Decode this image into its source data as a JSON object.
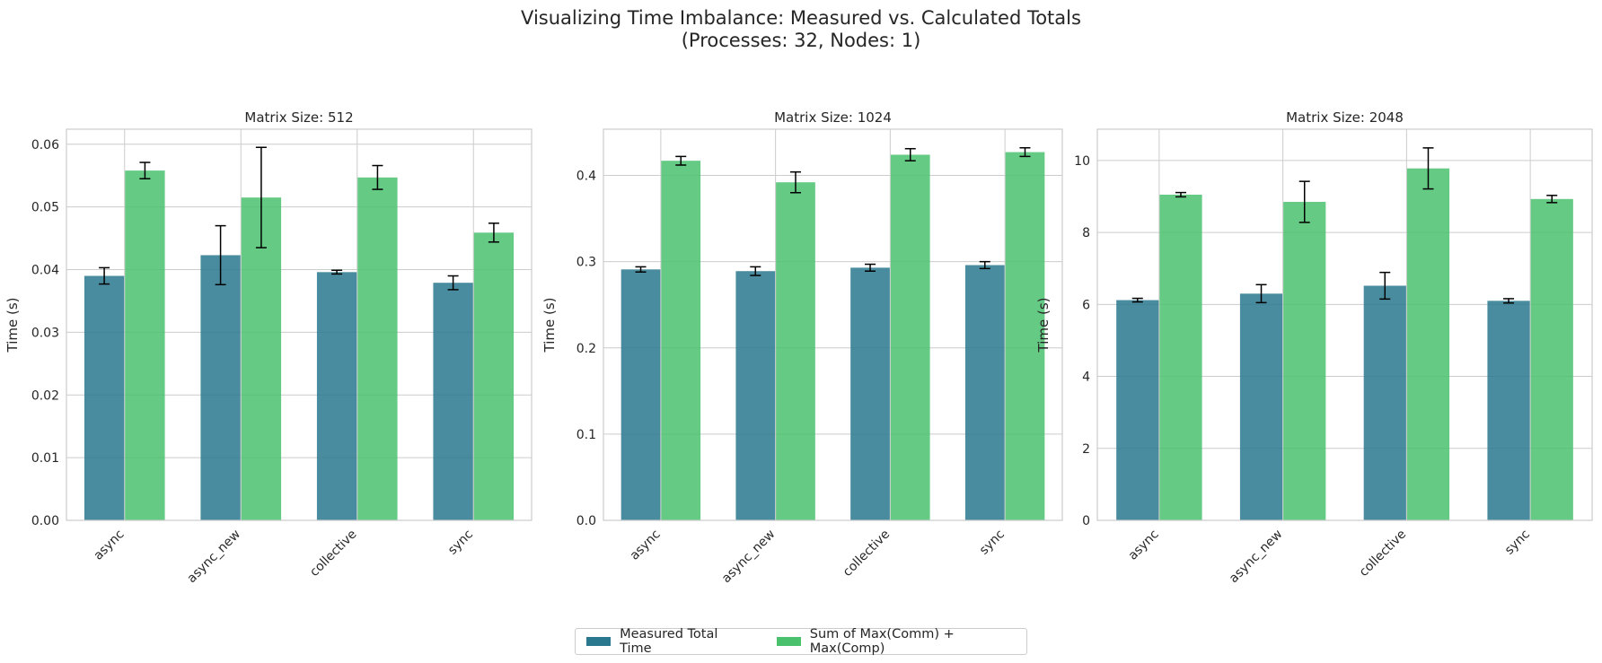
{
  "figure": {
    "title_line1": "Visualizing Time Imbalance: Measured vs. Calculated Totals",
    "title_line2": "(Processes: 32, Nodes: 1)"
  },
  "colors": {
    "measured": "#2a788e",
    "calculated": "#4ac16d",
    "grid": "#cccccc",
    "axis_text": "#262626",
    "error_bar": "#000000"
  },
  "legend": {
    "placement": "bottom-center",
    "items": [
      {
        "label": "Measured Total Time",
        "series": "measured"
      },
      {
        "label": "Sum of Max(Comm) + Max(Comp)",
        "series": "calculated"
      }
    ]
  },
  "chart_data": [
    {
      "type": "bar",
      "title": "Matrix Size: 512",
      "ylabel": "Time (s)",
      "xlabel": "",
      "ylim": [
        0,
        0.0624
      ],
      "yticks": [
        "0.00",
        "0.01",
        "0.02",
        "0.03",
        "0.04",
        "0.05",
        "0.06"
      ],
      "ytick_values": [
        0,
        0.01,
        0.02,
        0.03,
        0.04,
        0.05,
        0.06
      ],
      "grid": true,
      "categories": [
        "async",
        "async_new",
        "collective",
        "sync"
      ],
      "series": [
        {
          "name": "Measured Total Time",
          "key": "measured",
          "values": [
            0.039,
            0.0423,
            0.0396,
            0.0379
          ],
          "errors": [
            0.0013,
            0.0047,
            0.0003,
            0.0011
          ]
        },
        {
          "name": "Sum of Max(Comm) + Max(Comp)",
          "key": "calculated",
          "values": [
            0.0558,
            0.0515,
            0.0547,
            0.0459
          ],
          "errors": [
            0.0013,
            0.008,
            0.0019,
            0.0015
          ]
        }
      ]
    },
    {
      "type": "bar",
      "title": "Matrix Size: 1024",
      "ylabel": "Time (s)",
      "xlabel": "",
      "ylim": [
        0,
        0.4536
      ],
      "yticks": [
        "0.0",
        "0.1",
        "0.2",
        "0.3",
        "0.4"
      ],
      "ytick_values": [
        0,
        0.1,
        0.2,
        0.3,
        0.4
      ],
      "grid": true,
      "categories": [
        "async",
        "async_new",
        "collective",
        "sync"
      ],
      "series": [
        {
          "name": "Measured Total Time",
          "key": "measured",
          "values": [
            0.291,
            0.289,
            0.293,
            0.296
          ],
          "errors": [
            0.003,
            0.005,
            0.004,
            0.004
          ]
        },
        {
          "name": "Sum of Max(Comm) + Max(Comp)",
          "key": "calculated",
          "values": [
            0.417,
            0.392,
            0.424,
            0.427
          ],
          "errors": [
            0.005,
            0.012,
            0.007,
            0.005
          ]
        }
      ]
    },
    {
      "type": "bar",
      "title": "Matrix Size: 2048",
      "ylabel": "Time (s)",
      "xlabel": "",
      "ylim": [
        0,
        10.87
      ],
      "yticks": [
        "0",
        "2",
        "4",
        "6",
        "8",
        "10"
      ],
      "ytick_values": [
        0,
        2,
        4,
        6,
        8,
        10
      ],
      "grid": true,
      "categories": [
        "async",
        "async_new",
        "collective",
        "sync"
      ],
      "series": [
        {
          "name": "Measured Total Time",
          "key": "measured",
          "values": [
            6.12,
            6.3,
            6.52,
            6.1
          ],
          "errors": [
            0.05,
            0.25,
            0.37,
            0.06
          ]
        },
        {
          "name": "Sum of Max(Comm) + Max(Comp)",
          "key": "calculated",
          "values": [
            9.05,
            8.85,
            9.78,
            8.93
          ],
          "errors": [
            0.06,
            0.57,
            0.57,
            0.1
          ]
        }
      ]
    }
  ]
}
